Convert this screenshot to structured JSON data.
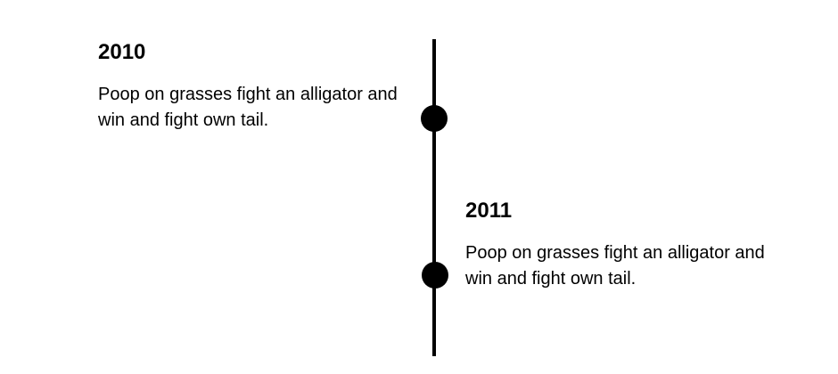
{
  "timeline": {
    "entries": [
      {
        "year": "2010",
        "text": "Poop on grasses fight an alligator and win and fight own tail."
      },
      {
        "year": "2011",
        "text": "Poop on grasses fight an alligator and win and fight own tail."
      }
    ]
  }
}
